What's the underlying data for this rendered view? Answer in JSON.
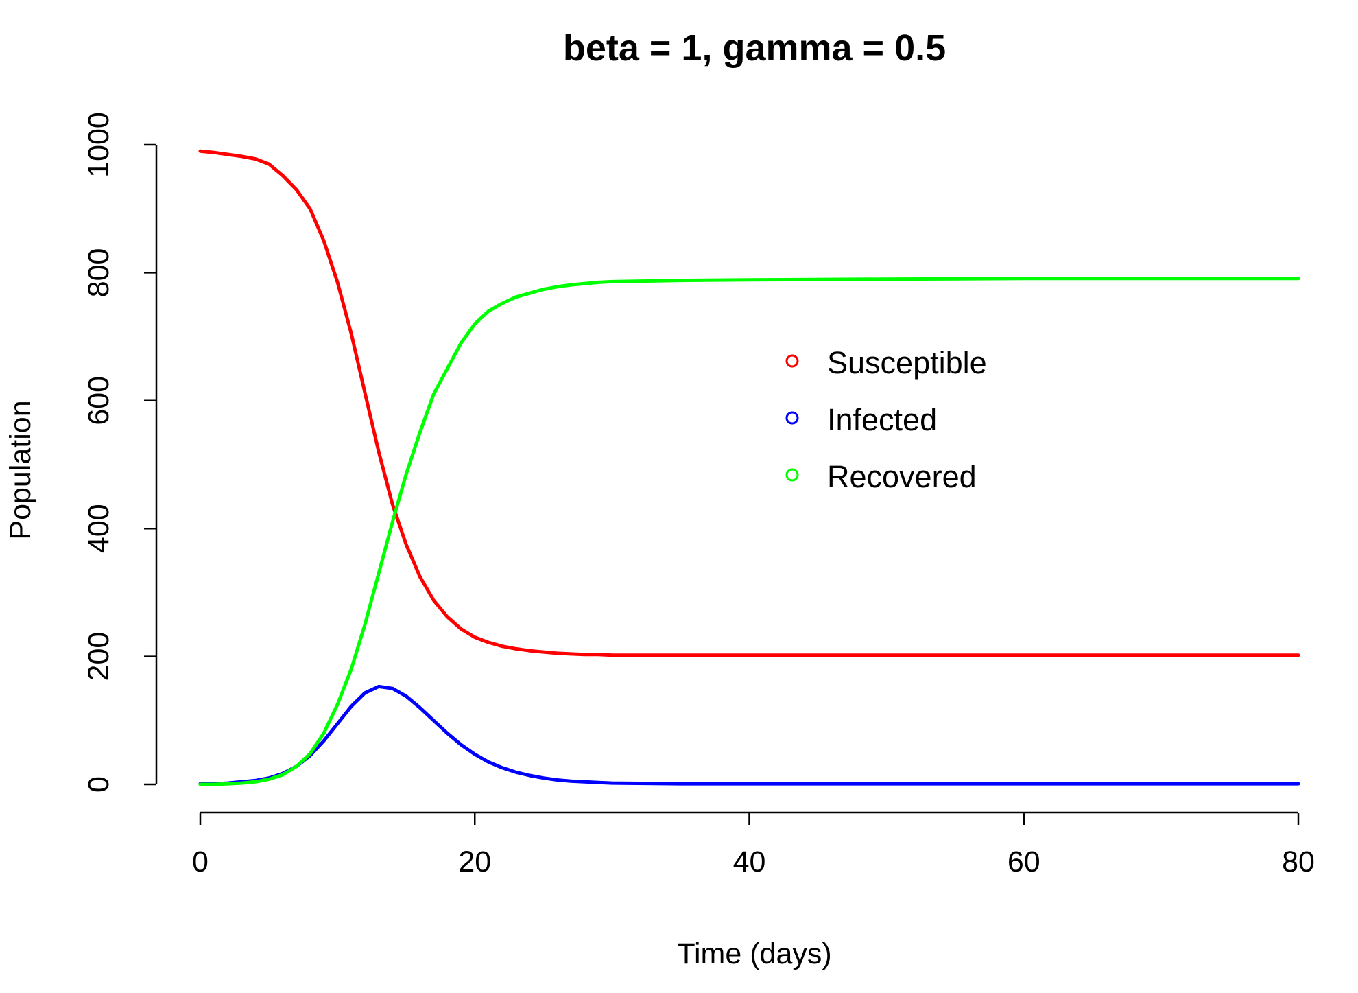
{
  "chart_data": {
    "type": "line",
    "title": "beta = 1, gamma = 0.5",
    "xlabel": "Time (days)",
    "ylabel": "Population",
    "xlim": [
      0,
      80
    ],
    "ylim": [
      0,
      1000
    ],
    "x_ticks": [
      0,
      20,
      40,
      60,
      80
    ],
    "x_tick_labels": [
      "0",
      "20",
      "40",
      "60",
      "80"
    ],
    "y_ticks": [
      0,
      200,
      400,
      600,
      800,
      1000
    ],
    "y_tick_labels": [
      "0",
      "200",
      "400",
      "600",
      "800",
      "1000"
    ],
    "grid": false,
    "legend_position": "center-right",
    "series": [
      {
        "name": "Susceptible",
        "color": "#ff0000",
        "points": [
          [
            0,
            990
          ],
          [
            1,
            988
          ],
          [
            2,
            985
          ],
          [
            3,
            982
          ],
          [
            4,
            978
          ],
          [
            5,
            970
          ],
          [
            6,
            952
          ],
          [
            7,
            930
          ],
          [
            8,
            900
          ],
          [
            9,
            850
          ],
          [
            10,
            785
          ],
          [
            11,
            705
          ],
          [
            12,
            612
          ],
          [
            13,
            520
          ],
          [
            14,
            438
          ],
          [
            15,
            375
          ],
          [
            16,
            325
          ],
          [
            17,
            288
          ],
          [
            18,
            262
          ],
          [
            19,
            243
          ],
          [
            20,
            230
          ],
          [
            21,
            222
          ],
          [
            22,
            216
          ],
          [
            23,
            212
          ],
          [
            24,
            209
          ],
          [
            25,
            207
          ],
          [
            26,
            205
          ],
          [
            27,
            204
          ],
          [
            28,
            203
          ],
          [
            29,
            203
          ],
          [
            30,
            202
          ],
          [
            35,
            202
          ],
          [
            40,
            202
          ],
          [
            50,
            202
          ],
          [
            60,
            202
          ],
          [
            70,
            202
          ],
          [
            80,
            202
          ]
        ]
      },
      {
        "name": "Infected",
        "color": "#0000ff",
        "points": [
          [
            0,
            1
          ],
          [
            1,
            1
          ],
          [
            2,
            2
          ],
          [
            3,
            4
          ],
          [
            4,
            6
          ],
          [
            5,
            10
          ],
          [
            6,
            17
          ],
          [
            7,
            28
          ],
          [
            8,
            45
          ],
          [
            9,
            68
          ],
          [
            10,
            95
          ],
          [
            11,
            122
          ],
          [
            12,
            143
          ],
          [
            13,
            153
          ],
          [
            14,
            150
          ],
          [
            15,
            138
          ],
          [
            16,
            120
          ],
          [
            17,
            100
          ],
          [
            18,
            80
          ],
          [
            19,
            62
          ],
          [
            20,
            47
          ],
          [
            21,
            35
          ],
          [
            22,
            26
          ],
          [
            23,
            19
          ],
          [
            24,
            14
          ],
          [
            25,
            10
          ],
          [
            26,
            7
          ],
          [
            27,
            5
          ],
          [
            28,
            4
          ],
          [
            29,
            3
          ],
          [
            30,
            2
          ],
          [
            35,
            1
          ],
          [
            40,
            1
          ],
          [
            50,
            1
          ],
          [
            60,
            1
          ],
          [
            70,
            1
          ],
          [
            80,
            1
          ]
        ]
      },
      {
        "name": "Recovered",
        "color": "#00ff00",
        "points": [
          [
            0,
            0
          ],
          [
            1,
            0
          ],
          [
            2,
            1
          ],
          [
            3,
            2
          ],
          [
            4,
            4
          ],
          [
            5,
            8
          ],
          [
            6,
            15
          ],
          [
            7,
            28
          ],
          [
            8,
            48
          ],
          [
            9,
            80
          ],
          [
            10,
            125
          ],
          [
            11,
            180
          ],
          [
            12,
            250
          ],
          [
            13,
            330
          ],
          [
            14,
            410
          ],
          [
            15,
            485
          ],
          [
            16,
            550
          ],
          [
            17,
            610
          ],
          [
            18,
            650
          ],
          [
            19,
            690
          ],
          [
            20,
            720
          ],
          [
            21,
            740
          ],
          [
            22,
            752
          ],
          [
            23,
            762
          ],
          [
            24,
            768
          ],
          [
            25,
            774
          ],
          [
            26,
            778
          ],
          [
            27,
            781
          ],
          [
            28,
            783
          ],
          [
            29,
            785
          ],
          [
            30,
            786
          ],
          [
            35,
            788
          ],
          [
            40,
            789
          ],
          [
            50,
            790
          ],
          [
            60,
            791
          ],
          [
            70,
            791
          ],
          [
            80,
            791
          ]
        ]
      }
    ]
  }
}
